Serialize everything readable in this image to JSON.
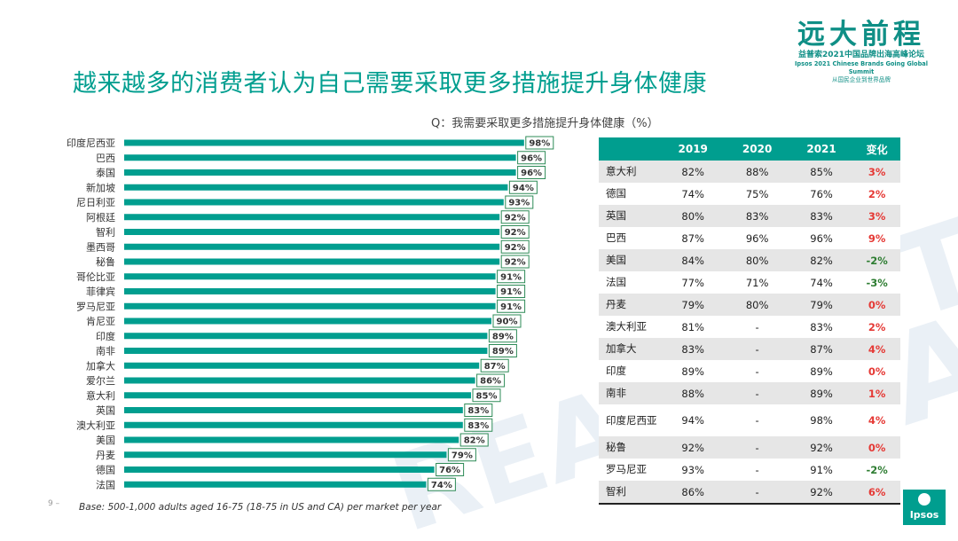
{
  "title": "越来越多的消费者认为自己需要采取更多措施提升身体健康",
  "logo": {
    "main": "远大前程",
    "line1": "益普索2021中国品牌出海高峰论坛",
    "line2": "Ipsos 2021 Chinese Brands Going Global Summit",
    "line3": "从国民企业到世界品牌"
  },
  "question": "Q：我需要采取更多措施提升身体健康（%）",
  "colors": {
    "bar": "#009e8f",
    "positive": "#e53935",
    "negative": "#2e7d32",
    "header": "#009e8f"
  },
  "chart_data": {
    "type": "bar",
    "orientation": "horizontal",
    "categories": [
      "印度尼西亚",
      "巴西",
      "泰国",
      "新加坡",
      "尼日利亚",
      "阿根廷",
      "智利",
      "墨西哥",
      "秘鲁",
      "哥伦比亚",
      "菲律宾",
      "罗马尼亚",
      "肯尼亚",
      "印度",
      "南非",
      "加拿大",
      "爱尔兰",
      "意大利",
      "英国",
      "澳大利亚",
      "美国",
      "丹麦",
      "德国",
      "法国"
    ],
    "values": [
      98,
      96,
      96,
      94,
      93,
      92,
      92,
      92,
      92,
      91,
      91,
      91,
      90,
      89,
      89,
      87,
      86,
      85,
      83,
      83,
      82,
      79,
      76,
      74
    ],
    "value_labels": [
      "98%",
      "96%",
      "96%",
      "94%",
      "93%",
      "92%",
      "92%",
      "92%",
      "92%",
      "91%",
      "91%",
      "91%",
      "90%",
      "89%",
      "89%",
      "87%",
      "86%",
      "85%",
      "83%",
      "83%",
      "82%",
      "79%",
      "76%",
      "74%"
    ],
    "xlim": [
      0,
      100
    ]
  },
  "table": {
    "headers": [
      "",
      "2019",
      "2020",
      "2021",
      "变化"
    ],
    "rows": [
      {
        "country": "意大利",
        "y2019": "82%",
        "y2020": "88%",
        "y2021": "85%",
        "change": "3%",
        "sign": "pos"
      },
      {
        "country": "德国",
        "y2019": "74%",
        "y2020": "75%",
        "y2021": "76%",
        "change": "2%",
        "sign": "pos"
      },
      {
        "country": "英国",
        "y2019": "80%",
        "y2020": "83%",
        "y2021": "83%",
        "change": "3%",
        "sign": "pos"
      },
      {
        "country": "巴西",
        "y2019": "87%",
        "y2020": "96%",
        "y2021": "96%",
        "change": "9%",
        "sign": "pos"
      },
      {
        "country": "美国",
        "y2019": "84%",
        "y2020": "80%",
        "y2021": "82%",
        "change": "-2%",
        "sign": "neg"
      },
      {
        "country": "法国",
        "y2019": "77%",
        "y2020": "71%",
        "y2021": "74%",
        "change": "-3%",
        "sign": "neg"
      },
      {
        "country": "丹麦",
        "y2019": "79%",
        "y2020": "80%",
        "y2021": "79%",
        "change": "0%",
        "sign": "pos"
      },
      {
        "country": "澳大利亚",
        "y2019": "81%",
        "y2020": "-",
        "y2021": "83%",
        "change": "2%",
        "sign": "pos"
      },
      {
        "country": "加拿大",
        "y2019": "83%",
        "y2020": "-",
        "y2021": "87%",
        "change": "4%",
        "sign": "pos"
      },
      {
        "country": "印度",
        "y2019": "89%",
        "y2020": "-",
        "y2021": "89%",
        "change": "0%",
        "sign": "pos"
      },
      {
        "country": "南非",
        "y2019": "88%",
        "y2020": "-",
        "y2021": "89%",
        "change": "1%",
        "sign": "pos"
      },
      {
        "country": "印度尼西亚",
        "y2019": "94%",
        "y2020": "-",
        "y2021": "98%",
        "change": "4%",
        "sign": "pos"
      },
      {
        "country": "秘鲁",
        "y2019": "92%",
        "y2020": "-",
        "y2021": "92%",
        "change": "0%",
        "sign": "pos"
      },
      {
        "country": "罗马尼亚",
        "y2019": "93%",
        "y2020": "-",
        "y2021": "91%",
        "change": "-2%",
        "sign": "neg"
      },
      {
        "country": "智利",
        "y2019": "86%",
        "y2020": "-",
        "y2021": "92%",
        "change": "6%",
        "sign": "pos"
      }
    ]
  },
  "page_number": "9 –",
  "base_note": "Base: 500-1,000 adults aged 16-75 (18-75 in US and CA) per market per year",
  "brand": "Ipsos"
}
